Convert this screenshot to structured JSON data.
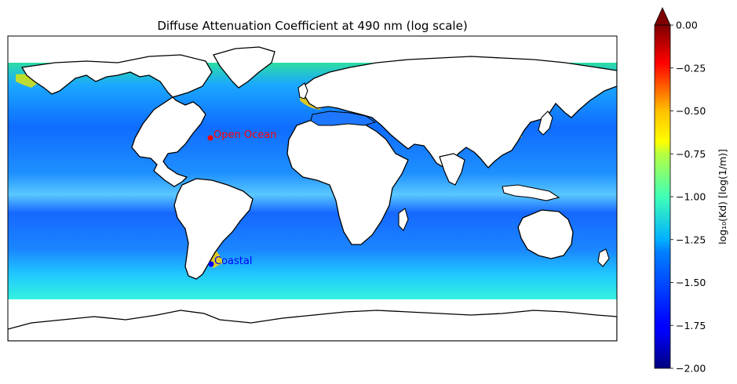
{
  "figure": {
    "title": "Diffuse Attenuation Coefficient at 490 nm (log scale)"
  },
  "map": {
    "projection": "PlateCarree",
    "coastlines": true,
    "land_color": "#ffffff",
    "ocean_colormap": "jet"
  },
  "markers": [
    {
      "label": "Open Ocean",
      "color": "#ff0000",
      "lon": -65,
      "lat": 35
    },
    {
      "label": "Coastal",
      "color": "#0000ff",
      "lon": -65,
      "lat": -42
    }
  ],
  "colorbar": {
    "label": "log₁₀(Kd) [log(1/m)]",
    "vmin": -2.0,
    "vmax": 0.0,
    "extend": "max",
    "colormap": "jet",
    "ticks": [
      "0.00",
      "−0.25",
      "−0.50",
      "−0.75",
      "−1.00",
      "−1.25",
      "−1.50",
      "−1.75",
      "−2.00"
    ]
  }
}
